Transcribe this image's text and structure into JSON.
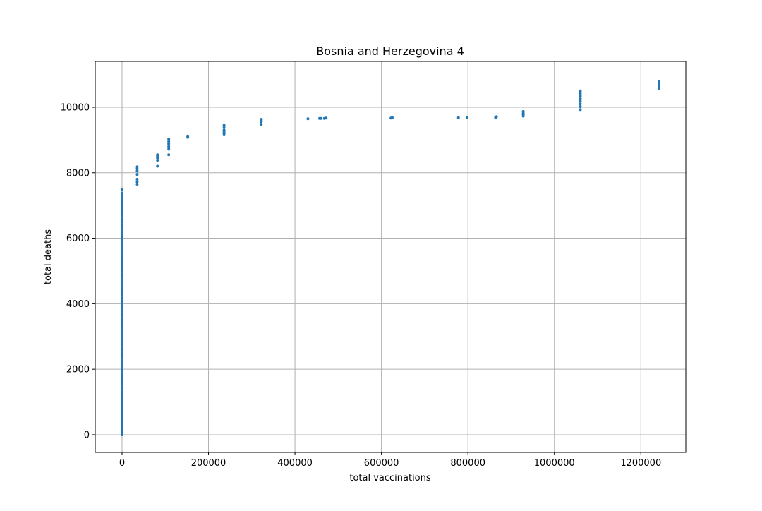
{
  "chart_data": {
    "type": "scatter",
    "title": "Bosnia and Herzegovina 4",
    "xlabel": "total vaccinations",
    "ylabel": "total deaths",
    "xlim": [
      -62000,
      1304000
    ],
    "ylim": [
      -540,
      11400
    ],
    "x_ticks": [
      0,
      200000,
      400000,
      600000,
      800000,
      1000000,
      1200000
    ],
    "x_tick_labels": [
      "0",
      "200000",
      "400000",
      "600000",
      "800000",
      "1000000",
      "1200000"
    ],
    "y_ticks": [
      0,
      2000,
      4000,
      6000,
      8000,
      10000
    ],
    "y_tick_labels": [
      "0",
      "2000",
      "4000",
      "6000",
      "8000",
      "10000"
    ],
    "grid": true,
    "marker_color": "#1f77b4",
    "series": [
      {
        "points": [
          [
            0,
            0
          ],
          [
            0,
            40
          ],
          [
            0,
            80
          ],
          [
            0,
            120
          ],
          [
            0,
            160
          ],
          [
            0,
            200
          ],
          [
            0,
            250
          ],
          [
            0,
            300
          ],
          [
            0,
            350
          ],
          [
            0,
            400
          ],
          [
            0,
            450
          ],
          [
            0,
            500
          ],
          [
            0,
            550
          ],
          [
            0,
            600
          ],
          [
            0,
            650
          ],
          [
            0,
            700
          ],
          [
            0,
            750
          ],
          [
            0,
            800
          ],
          [
            0,
            850
          ],
          [
            0,
            900
          ],
          [
            0,
            950
          ],
          [
            0,
            1000
          ],
          [
            0,
            1060
          ],
          [
            0,
            1120
          ],
          [
            0,
            1180
          ],
          [
            0,
            1240
          ],
          [
            0,
            1300
          ],
          [
            0,
            1380
          ],
          [
            0,
            1460
          ],
          [
            0,
            1540
          ],
          [
            0,
            1620
          ],
          [
            0,
            1700
          ],
          [
            0,
            1780
          ],
          [
            0,
            1860
          ],
          [
            0,
            1940
          ],
          [
            0,
            2020
          ],
          [
            0,
            2100
          ],
          [
            0,
            2180
          ],
          [
            0,
            2260
          ],
          [
            0,
            2340
          ],
          [
            0,
            2420
          ],
          [
            0,
            2500
          ],
          [
            0,
            2580
          ],
          [
            0,
            2660
          ],
          [
            0,
            2740
          ],
          [
            0,
            2820
          ],
          [
            0,
            2900
          ],
          [
            0,
            2980
          ],
          [
            0,
            3060
          ],
          [
            0,
            3140
          ],
          [
            0,
            3220
          ],
          [
            0,
            3300
          ],
          [
            0,
            3380
          ],
          [
            0,
            3460
          ],
          [
            0,
            3540
          ],
          [
            0,
            3620
          ],
          [
            0,
            3700
          ],
          [
            0,
            3780
          ],
          [
            0,
            3860
          ],
          [
            0,
            3940
          ],
          [
            0,
            4020
          ],
          [
            0,
            4100
          ],
          [
            0,
            4180
          ],
          [
            0,
            4260
          ],
          [
            0,
            4340
          ],
          [
            0,
            4420
          ],
          [
            0,
            4500
          ],
          [
            0,
            4580
          ],
          [
            0,
            4660
          ],
          [
            0,
            4740
          ],
          [
            0,
            4820
          ],
          [
            0,
            4900
          ],
          [
            0,
            4980
          ],
          [
            0,
            5060
          ],
          [
            0,
            5140
          ],
          [
            0,
            5220
          ],
          [
            0,
            5300
          ],
          [
            0,
            5380
          ],
          [
            0,
            5460
          ],
          [
            0,
            5540
          ],
          [
            0,
            5620
          ],
          [
            0,
            5700
          ],
          [
            0,
            5780
          ],
          [
            0,
            5860
          ],
          [
            0,
            5940
          ],
          [
            0,
            6020
          ],
          [
            0,
            6100
          ],
          [
            0,
            6180
          ],
          [
            0,
            6260
          ],
          [
            0,
            6340
          ],
          [
            0,
            6420
          ],
          [
            0,
            6500
          ],
          [
            0,
            6580
          ],
          [
            0,
            6660
          ],
          [
            0,
            6740
          ],
          [
            0,
            6820
          ],
          [
            0,
            6900
          ],
          [
            0,
            6980
          ],
          [
            0,
            7060
          ],
          [
            0,
            7140
          ],
          [
            0,
            7220
          ],
          [
            0,
            7300
          ],
          [
            0,
            7380
          ],
          [
            0,
            7480
          ],
          [
            35000,
            7650
          ],
          [
            35000,
            7720
          ],
          [
            35000,
            7800
          ],
          [
            35000,
            7950
          ],
          [
            35000,
            8050
          ],
          [
            35000,
            8120
          ],
          [
            35000,
            8180
          ],
          [
            82000,
            8200
          ],
          [
            82000,
            8380
          ],
          [
            82000,
            8450
          ],
          [
            82000,
            8500
          ],
          [
            82000,
            8550
          ],
          [
            108000,
            8550
          ],
          [
            108000,
            8720
          ],
          [
            108000,
            8800
          ],
          [
            108000,
            8880
          ],
          [
            108000,
            8950
          ],
          [
            108000,
            9030
          ],
          [
            152000,
            9080
          ],
          [
            152000,
            9120
          ],
          [
            236000,
            9180
          ],
          [
            236000,
            9240
          ],
          [
            236000,
            9300
          ],
          [
            236000,
            9380
          ],
          [
            236000,
            9450
          ],
          [
            322000,
            9480
          ],
          [
            322000,
            9560
          ],
          [
            322000,
            9600
          ],
          [
            322000,
            9630
          ],
          [
            430000,
            9650
          ],
          [
            457000,
            9660
          ],
          [
            460000,
            9660
          ],
          [
            468000,
            9660
          ],
          [
            472000,
            9670
          ],
          [
            622000,
            9670
          ],
          [
            625000,
            9680
          ],
          [
            778000,
            9680
          ],
          [
            798000,
            9680
          ],
          [
            864000,
            9690
          ],
          [
            866000,
            9710
          ],
          [
            928000,
            9730
          ],
          [
            928000,
            9780
          ],
          [
            928000,
            9820
          ],
          [
            928000,
            9870
          ],
          [
            1060000,
            9930
          ],
          [
            1060000,
            10020
          ],
          [
            1060000,
            10100
          ],
          [
            1060000,
            10180
          ],
          [
            1060000,
            10260
          ],
          [
            1060000,
            10340
          ],
          [
            1060000,
            10420
          ],
          [
            1060000,
            10500
          ],
          [
            1242000,
            10580
          ],
          [
            1242000,
            10650
          ],
          [
            1242000,
            10730
          ],
          [
            1242000,
            10790
          ]
        ]
      }
    ]
  }
}
